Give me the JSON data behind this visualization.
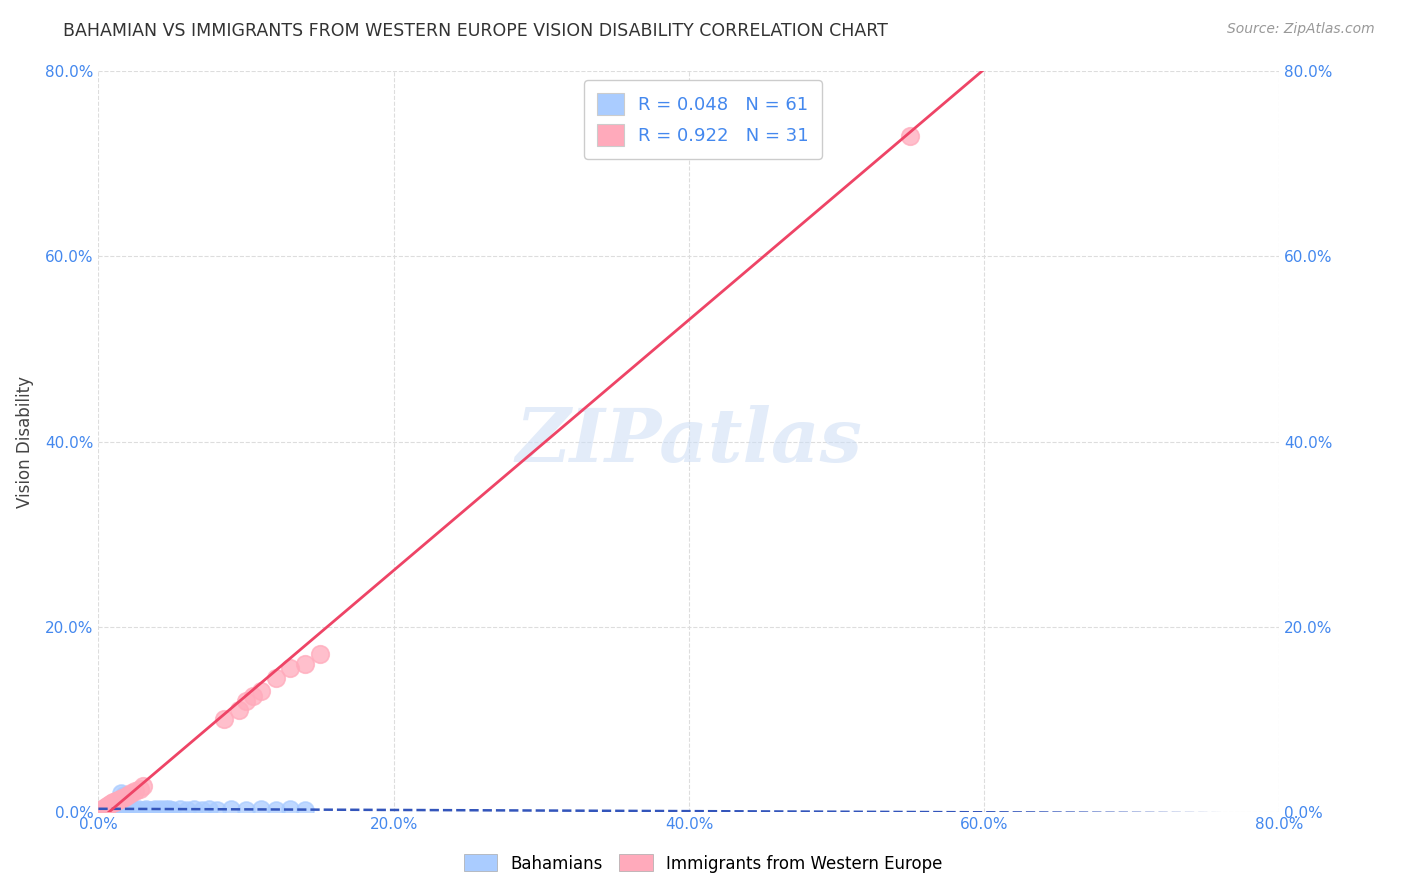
{
  "title": "BAHAMIAN VS IMMIGRANTS FROM WESTERN EUROPE VISION DISABILITY CORRELATION CHART",
  "source": "Source: ZipAtlas.com",
  "ylabel": "Vision Disability",
  "xlim": [
    0.0,
    0.8
  ],
  "ylim": [
    0.0,
    0.8
  ],
  "xtick_labels": [
    "0.0%",
    "20.0%",
    "40.0%",
    "60.0%",
    "80.0%"
  ],
  "ytick_labels": [
    "0.0%",
    "20.0%",
    "40.0%",
    "60.0%",
    "80.0%"
  ],
  "xticks": [
    0.0,
    0.2,
    0.4,
    0.6,
    0.8
  ],
  "yticks": [
    0.0,
    0.2,
    0.4,
    0.6,
    0.8
  ],
  "bahamian_color": "#aaccff",
  "immigrant_color": "#ffaabb",
  "bahamian_line_color": "#3355bb",
  "immigrant_line_color": "#ee4466",
  "legend_R_bahamian": "0.048",
  "legend_N_bahamian": "61",
  "legend_R_immigrant": "0.922",
  "legend_N_immigrant": "31",
  "watermark": "ZIPatlas",
  "background_color": "#ffffff",
  "grid_color": "#dddddd",
  "tick_color": "#4488ee",
  "bahamian_x": [
    0.001,
    0.002,
    0.002,
    0.003,
    0.003,
    0.004,
    0.004,
    0.005,
    0.005,
    0.006,
    0.006,
    0.007,
    0.007,
    0.008,
    0.008,
    0.009,
    0.009,
    0.01,
    0.01,
    0.011,
    0.011,
    0.012,
    0.012,
    0.013,
    0.013,
    0.014,
    0.015,
    0.016,
    0.017,
    0.018,
    0.019,
    0.02,
    0.021,
    0.022,
    0.023,
    0.025,
    0.027,
    0.03,
    0.032,
    0.035,
    0.038,
    0.04,
    0.042,
    0.045,
    0.048,
    0.05,
    0.055,
    0.06,
    0.065,
    0.07,
    0.075,
    0.08,
    0.09,
    0.1,
    0.11,
    0.12,
    0.13,
    0.14,
    0.015,
    0.017,
    0.045
  ],
  "bahamian_y": [
    0.001,
    0.002,
    0.001,
    0.003,
    0.002,
    0.002,
    0.003,
    0.002,
    0.003,
    0.002,
    0.003,
    0.002,
    0.003,
    0.002,
    0.003,
    0.002,
    0.003,
    0.002,
    0.003,
    0.002,
    0.003,
    0.002,
    0.003,
    0.002,
    0.003,
    0.002,
    0.003,
    0.002,
    0.003,
    0.002,
    0.003,
    0.002,
    0.003,
    0.002,
    0.003,
    0.002,
    0.003,
    0.002,
    0.003,
    0.002,
    0.003,
    0.002,
    0.003,
    0.002,
    0.003,
    0.002,
    0.003,
    0.002,
    0.003,
    0.002,
    0.003,
    0.002,
    0.003,
    0.002,
    0.003,
    0.002,
    0.003,
    0.002,
    0.02,
    0.018,
    0.003
  ],
  "immigrant_x": [
    0.001,
    0.002,
    0.003,
    0.004,
    0.005,
    0.006,
    0.007,
    0.008,
    0.009,
    0.01,
    0.011,
    0.012,
    0.013,
    0.015,
    0.016,
    0.018,
    0.02,
    0.022,
    0.025,
    0.028,
    0.03,
    0.085,
    0.095,
    0.1,
    0.105,
    0.11,
    0.12,
    0.13,
    0.14,
    0.15,
    0.55
  ],
  "immigrant_y": [
    0.001,
    0.002,
    0.003,
    0.004,
    0.005,
    0.006,
    0.007,
    0.008,
    0.009,
    0.01,
    0.011,
    0.012,
    0.013,
    0.014,
    0.015,
    0.016,
    0.018,
    0.02,
    0.022,
    0.025,
    0.028,
    0.1,
    0.11,
    0.12,
    0.125,
    0.13,
    0.145,
    0.155,
    0.16,
    0.17,
    0.73
  ]
}
